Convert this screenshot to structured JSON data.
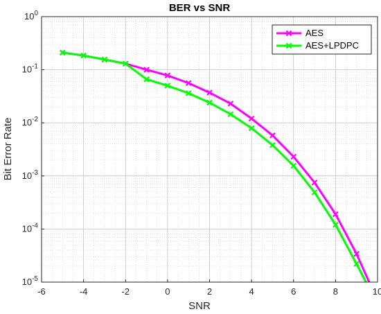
{
  "chart_data": {
    "type": "line",
    "title": "BER vs SNR",
    "xlabel": "SNR",
    "ylabel": "Bit Error Rate",
    "xlim": [
      -6,
      10
    ],
    "ylim": [
      1e-05,
      1
    ],
    "yscale": "log",
    "grid": true,
    "minor_grid": true,
    "legend_position": "top-right",
    "x_ticks": [
      "-6",
      "-4",
      "-2",
      "0",
      "2",
      "4",
      "6",
      "8",
      "10"
    ],
    "y_ticks": [
      {
        "base": "10",
        "exp": "0"
      },
      {
        "base": "10",
        "exp": "-1"
      },
      {
        "base": "10",
        "exp": "-2"
      },
      {
        "base": "10",
        "exp": "-3"
      },
      {
        "base": "10",
        "exp": "-4"
      },
      {
        "base": "10",
        "exp": "-5"
      }
    ],
    "series": [
      {
        "name": "AES",
        "color": "#ff00ff",
        "marker": "x",
        "x": [
          -5,
          -4,
          -3,
          -2,
          -1,
          0,
          1,
          2,
          3,
          4,
          5,
          6,
          7,
          8,
          9,
          9.6
        ],
        "y": [
          0.21,
          0.185,
          0.155,
          0.13,
          0.1,
          0.078,
          0.056,
          0.037,
          0.023,
          0.012,
          0.0058,
          0.0023,
          0.00075,
          0.00019,
          3.4e-05,
          1e-05
        ]
      },
      {
        "name": "AES+LPDPC",
        "color": "#00ff00",
        "marker": "x",
        "x": [
          -5,
          -4,
          -3,
          -2,
          -1,
          0,
          1,
          2,
          3,
          4,
          5,
          6,
          7,
          8,
          9,
          9.45
        ],
        "y": [
          0.21,
          0.185,
          0.155,
          0.13,
          0.066,
          0.05,
          0.036,
          0.024,
          0.0145,
          0.0079,
          0.0038,
          0.00155,
          0.00049,
          0.00012,
          2.2e-05,
          1e-05
        ]
      }
    ]
  }
}
